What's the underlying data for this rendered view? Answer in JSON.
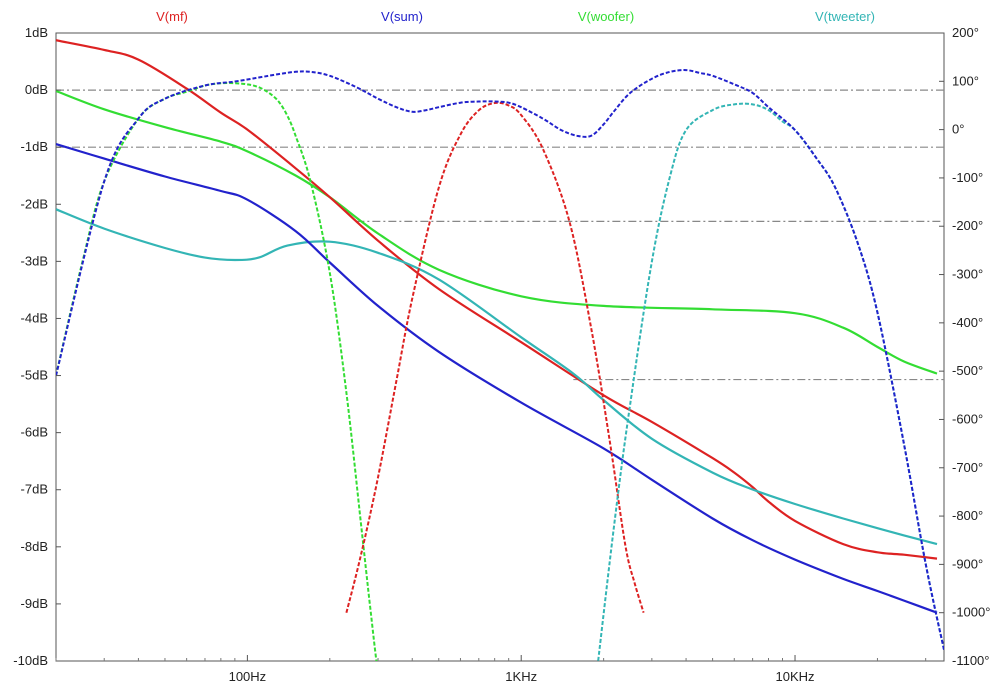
{
  "chart_data": {
    "type": "line",
    "title": "",
    "xlabel": "",
    "ylabel_left": "",
    "ylabel_right": "",
    "x_scale": "log",
    "xlim": [
      20,
      35000
    ],
    "ylim_left": [
      -10,
      1
    ],
    "ylim_right": [
      -1100,
      200
    ],
    "x_ticks": [
      {
        "value": 100,
        "label": "100Hz"
      },
      {
        "value": 1000,
        "label": "1KHz"
      },
      {
        "value": 10000,
        "label": "10KHz"
      }
    ],
    "y_left_ticks": [
      {
        "value": 1,
        "label": "1dB"
      },
      {
        "value": 0,
        "label": "0dB"
      },
      {
        "value": -1,
        "label": "-1dB"
      },
      {
        "value": -2,
        "label": "-2dB"
      },
      {
        "value": -3,
        "label": "-3dB"
      },
      {
        "value": -4,
        "label": "-4dB"
      },
      {
        "value": -5,
        "label": "-5dB"
      },
      {
        "value": -6,
        "label": "-6dB"
      },
      {
        "value": -7,
        "label": "-7dB"
      },
      {
        "value": -8,
        "label": "-8dB"
      },
      {
        "value": -9,
        "label": "-9dB"
      },
      {
        "value": -10,
        "label": "-10dB"
      }
    ],
    "y_right_ticks": [
      {
        "value": 200,
        "label": "200°"
      },
      {
        "value": 100,
        "label": "100°"
      },
      {
        "value": 0,
        "label": "0°"
      },
      {
        "value": -100,
        "label": "-100°"
      },
      {
        "value": -200,
        "label": "-200°"
      },
      {
        "value": -300,
        "label": "-300°"
      },
      {
        "value": -400,
        "label": "-400°"
      },
      {
        "value": -500,
        "label": "-500°"
      },
      {
        "value": -600,
        "label": "-600°"
      },
      {
        "value": -700,
        "label": "-700°"
      },
      {
        "value": -800,
        "label": "-800°"
      },
      {
        "value": -900,
        "label": "-900°"
      },
      {
        "value": -1000,
        "label": "-1000°"
      },
      {
        "value": -1100,
        "label": "-1100°"
      }
    ],
    "reference_lines": [
      {
        "axis": "left",
        "value": 0,
        "x_from": 20,
        "x_to": 35000
      },
      {
        "axis": "left",
        "value": -1,
        "x_from": 20,
        "x_to": 35000
      },
      {
        "axis": "left",
        "value": -2.3,
        "x_from": 250,
        "x_to": 35000
      },
      {
        "axis": "left",
        "value": -5.07,
        "x_from": 1550,
        "x_to": 35000
      }
    ],
    "legend": [
      "V(mf)",
      "V(sum)",
      "V(woofer)",
      "V(tweeter)"
    ],
    "series": [
      {
        "name": "V(woofer)",
        "color": "#33dd33",
        "kind": "magnitude",
        "axis": "left",
        "x": [
          20,
          25,
          30,
          40,
          50,
          60,
          70,
          80,
          90,
          100,
          110,
          120,
          130,
          140,
          150,
          170,
          200,
          230,
          260,
          280,
          300,
          320
        ],
        "y": [
          -5.0,
          -3.0,
          -1.6,
          -0.5,
          -0.15,
          -0.03,
          0.08,
          0.12,
          0.12,
          0.1,
          0.05,
          -0.05,
          -0.2,
          -0.45,
          -0.8,
          -1.6,
          -3.2,
          -5.3,
          -7.6,
          -9.0,
          -10.2,
          -10.8
        ]
      },
      {
        "name": "V(woofer)",
        "color": "#33dd33",
        "kind": "phase",
        "axis": "right",
        "x": [
          20,
          30,
          50,
          80,
          100,
          150,
          200,
          300,
          500,
          1000,
          2000,
          5000,
          10000,
          15000,
          20000,
          25000,
          33000
        ],
        "y": [
          80,
          42,
          5,
          -25,
          -45,
          -95,
          -140,
          -215,
          -290,
          -345,
          -365,
          -372,
          -380,
          -410,
          -450,
          -480,
          -505
        ]
      },
      {
        "name": "V(mf)",
        "color": "#dd2222",
        "kind": "magnitude",
        "axis": "right",
        "x": [
          230,
          260,
          300,
          350,
          400,
          500,
          600,
          700,
          800,
          900,
          1000,
          1200,
          1500,
          1800,
          2100,
          2400,
          2600,
          2800
        ],
        "y": [
          -1000,
          -880,
          -720,
          -520,
          -350,
          -120,
          -10,
          40,
          55,
          50,
          30,
          -40,
          -190,
          -410,
          -640,
          -860,
          -940,
          -1000
        ]
      },
      {
        "name": "V(mf)",
        "color": "#dd2222",
        "kind": "phase",
        "axis": "right",
        "x": [
          20,
          30,
          40,
          60,
          80,
          100,
          150,
          200,
          300,
          500,
          1000,
          2000,
          3000,
          5000,
          6000,
          7000,
          8000,
          10000,
          15000,
          20000,
          25000,
          33000
        ],
        "y": [
          185,
          165,
          145,
          85,
          35,
          0,
          -80,
          -140,
          -230,
          -330,
          -440,
          -550,
          -605,
          -680,
          -710,
          -740,
          -770,
          -810,
          -858,
          -875,
          -880,
          -888
        ]
      },
      {
        "name": "V(tweeter)",
        "color": "#33b5b5",
        "kind": "magnitude",
        "axis": "left",
        "x": [
          1900,
          2200,
          2500,
          3000,
          3500,
          4000,
          5000,
          6000,
          7000,
          8000,
          9000,
          10000,
          12000,
          14000,
          17000,
          20000,
          25000,
          30000,
          35000
        ],
        "y": [
          -10.1,
          -7.5,
          -5.5,
          -3.0,
          -1.5,
          -0.7,
          -0.35,
          -0.25,
          -0.25,
          -0.35,
          -0.55,
          -0.7,
          -1.2,
          -1.7,
          -2.7,
          -3.9,
          -6.2,
          -8.3,
          -9.8
        ]
      },
      {
        "name": "V(tweeter)",
        "color": "#33b5b5",
        "kind": "phase",
        "axis": "right",
        "x": [
          20,
          30,
          50,
          70,
          90,
          110,
          140,
          200,
          300,
          500,
          1000,
          1550,
          2000,
          3000,
          5000,
          7000,
          10000,
          15000,
          20000,
          25000,
          33000
        ],
        "y": [
          -165,
          -205,
          -245,
          -265,
          -270,
          -265,
          -240,
          -232,
          -255,
          -310,
          -430,
          -505,
          -560,
          -640,
          -710,
          -745,
          -775,
          -805,
          -825,
          -840,
          -858
        ]
      },
      {
        "name": "V(sum)",
        "color": "#2222cc",
        "kind": "magnitude",
        "axis": "left",
        "x": [
          20,
          30,
          40,
          50,
          70,
          90,
          110,
          130,
          150,
          170,
          200,
          250,
          300,
          350,
          400,
          450,
          500,
          600,
          700,
          800,
          900,
          1000,
          1200,
          1400,
          1600,
          1800,
          2000,
          2200,
          2500,
          3000,
          3500,
          4000,
          4500,
          5000,
          6000,
          7000,
          8000,
          10000,
          12000,
          14000,
          17000,
          20000,
          25000,
          30000,
          35000
        ],
        "y": [
          -5.0,
          -1.6,
          -0.5,
          -0.15,
          0.08,
          0.15,
          0.22,
          0.28,
          0.32,
          0.32,
          0.25,
          0.05,
          -0.15,
          -0.3,
          -0.38,
          -0.35,
          -0.3,
          -0.22,
          -0.2,
          -0.2,
          -0.22,
          -0.3,
          -0.5,
          -0.7,
          -0.8,
          -0.8,
          -0.6,
          -0.35,
          -0.05,
          0.2,
          0.32,
          0.35,
          0.3,
          0.25,
          0.1,
          -0.05,
          -0.3,
          -0.7,
          -1.2,
          -1.7,
          -2.7,
          -3.9,
          -6.2,
          -8.3,
          -9.8
        ]
      },
      {
        "name": "V(sum)",
        "color": "#2222cc",
        "kind": "phase",
        "axis": "right",
        "x": [
          20,
          30,
          50,
          80,
          100,
          150,
          200,
          300,
          500,
          1000,
          2000,
          3000,
          5000,
          7000,
          10000,
          15000,
          20000,
          25000,
          33000
        ],
        "y": [
          -30,
          -60,
          -97,
          -127,
          -145,
          -210,
          -275,
          -365,
          -460,
          -565,
          -660,
          -725,
          -805,
          -850,
          -890,
          -930,
          -955,
          -975,
          -1000
        ]
      }
    ]
  }
}
